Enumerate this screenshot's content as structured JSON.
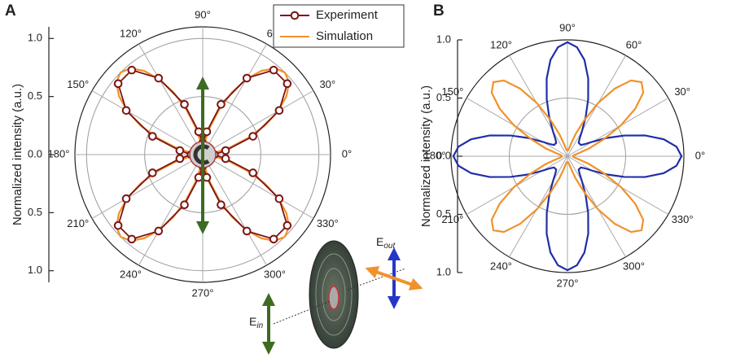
{
  "chart_data": [
    {
      "type": "polar",
      "panel": "A",
      "ylabel": "Normalized intensity (a.u.)",
      "rlim": [
        0,
        1.1
      ],
      "rticks": [
        {
          "value": 0,
          "label": "0.0"
        },
        {
          "value": 0.5,
          "label": "0.5"
        },
        {
          "value": 1,
          "label": "1.0"
        }
      ],
      "thetaticks": [
        {
          "value": 0,
          "label": "0°"
        },
        {
          "value": 30,
          "label": "30°"
        },
        {
          "value": 60,
          "label": "60°"
        },
        {
          "value": 90,
          "label": "90°"
        },
        {
          "value": 120,
          "label": "120°"
        },
        {
          "value": 150,
          "label": "150°"
        },
        {
          "value": 180,
          "label": "180°"
        },
        {
          "value": 210,
          "label": "210°"
        },
        {
          "value": 240,
          "label": "240°"
        },
        {
          "value": 270,
          "label": "270°"
        },
        {
          "value": 300,
          "label": "300°"
        },
        {
          "value": 330,
          "label": "330°"
        }
      ],
      "grid": true,
      "legend": "top-right",
      "series": [
        {
          "name": "Simulation",
          "color": "#f0922b",
          "marker": false,
          "theta": [
            0,
            5,
            10,
            15,
            20,
            25,
            30,
            35,
            40,
            45,
            50,
            55,
            60,
            65,
            70,
            75,
            80,
            85,
            90,
            95,
            100,
            105,
            110,
            115,
            120,
            125,
            130,
            135,
            140,
            145,
            150,
            155,
            160,
            165,
            170,
            175,
            180,
            185,
            190,
            195,
            200,
            205,
            210,
            215,
            220,
            225,
            230,
            235,
            240,
            245,
            250,
            255,
            260,
            265,
            270,
            275,
            280,
            285,
            290,
            295,
            300,
            305,
            310,
            315,
            320,
            325,
            330,
            335,
            340,
            345,
            350,
            355
          ],
          "values": [
            0,
            0.03,
            0.12,
            0.25,
            0.41,
            0.59,
            0.75,
            0.88,
            0.97,
            1.0,
            0.97,
            0.88,
            0.75,
            0.59,
            0.41,
            0.25,
            0.12,
            0.03,
            0,
            0.03,
            0.12,
            0.25,
            0.41,
            0.59,
            0.75,
            0.88,
            0.97,
            1.0,
            0.97,
            0.88,
            0.75,
            0.59,
            0.41,
            0.25,
            0.12,
            0.03,
            0,
            0.03,
            0.12,
            0.25,
            0.41,
            0.59,
            0.75,
            0.88,
            0.97,
            1.0,
            0.97,
            0.88,
            0.75,
            0.59,
            0.41,
            0.25,
            0.12,
            0.03,
            0,
            0.03,
            0.12,
            0.25,
            0.41,
            0.59,
            0.75,
            0.88,
            0.97,
            1.0,
            0.97,
            0.88,
            0.75,
            0.59,
            0.41,
            0.25,
            0.12,
            0.03
          ]
        },
        {
          "name": "Experiment",
          "color": "#7d1414",
          "marker": true,
          "theta": [
            0,
            10,
            20,
            30,
            40,
            50,
            60,
            70,
            80,
            90,
            100,
            110,
            120,
            130,
            140,
            150,
            160,
            170,
            180,
            190,
            200,
            210,
            220,
            230,
            240,
            250,
            260,
            270,
            280,
            290,
            300,
            310,
            320,
            330,
            340,
            350
          ],
          "values": [
            0.1,
            0.2,
            0.46,
            0.76,
            0.95,
            0.95,
            0.76,
            0.46,
            0.2,
            0.1,
            0.2,
            0.46,
            0.76,
            0.95,
            0.95,
            0.76,
            0.46,
            0.2,
            0.1,
            0.2,
            0.46,
            0.76,
            0.95,
            0.95,
            0.76,
            0.46,
            0.2,
            0.1,
            0.2,
            0.46,
            0.76,
            0.95,
            0.95,
            0.76,
            0.46,
            0.2
          ]
        }
      ]
    },
    {
      "type": "polar",
      "panel": "B",
      "ylabel": "Normalized intensity (a.u.)",
      "rlim": [
        0,
        1.0
      ],
      "rticks": [
        {
          "value": 0,
          "label": "0.0"
        },
        {
          "value": 0.5,
          "label": "0.5"
        },
        {
          "value": 1,
          "label": "1.0"
        }
      ],
      "thetaticks": [
        {
          "value": 0,
          "label": "0°"
        },
        {
          "value": 30,
          "label": "30°"
        },
        {
          "value": 60,
          "label": "60°"
        },
        {
          "value": 90,
          "label": "90°"
        },
        {
          "value": 120,
          "label": "120°"
        },
        {
          "value": 150,
          "label": "150°"
        },
        {
          "value": 180,
          "label": "180°"
        },
        {
          "value": 210,
          "label": "210°"
        },
        {
          "value": 240,
          "label": "240°"
        },
        {
          "value": 270,
          "label": "270°"
        },
        {
          "value": 300,
          "label": "300°"
        },
        {
          "value": 330,
          "label": "330°"
        }
      ],
      "grid": true,
      "series": [
        {
          "color": "#1f2ea6",
          "marker": false,
          "theta": [
            0,
            5,
            10,
            15,
            20,
            25,
            30,
            35,
            40,
            45,
            50,
            55,
            60,
            65,
            70,
            75,
            80,
            85,
            90,
            95,
            100,
            105,
            110,
            115,
            120,
            125,
            130,
            135,
            140,
            145,
            150,
            155,
            160,
            165,
            170,
            175,
            180,
            185,
            190,
            195,
            200,
            205,
            210,
            215,
            220,
            225,
            230,
            235,
            240,
            245,
            250,
            255,
            260,
            265,
            270,
            275,
            280,
            285,
            290,
            295,
            300,
            305,
            310,
            315,
            320,
            325,
            330,
            335,
            340,
            345,
            350,
            355
          ],
          "values": [
            0.98,
            0.94,
            0.84,
            0.69,
            0.52,
            0.37,
            0.25,
            0.18,
            0.15,
            0.15,
            0.15,
            0.18,
            0.25,
            0.37,
            0.52,
            0.69,
            0.84,
            0.94,
            0.98,
            0.94,
            0.84,
            0.69,
            0.52,
            0.37,
            0.25,
            0.18,
            0.15,
            0.15,
            0.15,
            0.18,
            0.25,
            0.37,
            0.52,
            0.69,
            0.84,
            0.94,
            0.98,
            0.94,
            0.84,
            0.69,
            0.52,
            0.37,
            0.25,
            0.18,
            0.15,
            0.15,
            0.15,
            0.18,
            0.25,
            0.37,
            0.52,
            0.69,
            0.84,
            0.94,
            0.98,
            0.94,
            0.84,
            0.69,
            0.52,
            0.37,
            0.25,
            0.18,
            0.15,
            0.15,
            0.15,
            0.18,
            0.25,
            0.37,
            0.52,
            0.69,
            0.84,
            0.94
          ]
        },
        {
          "color": "#f0922b",
          "marker": false,
          "theta": [
            0,
            5,
            10,
            15,
            20,
            25,
            30,
            35,
            40,
            45,
            50,
            55,
            60,
            65,
            70,
            75,
            80,
            85,
            90,
            95,
            100,
            105,
            110,
            115,
            120,
            125,
            130,
            135,
            140,
            145,
            150,
            155,
            160,
            165,
            170,
            175,
            180,
            185,
            190,
            195,
            200,
            205,
            210,
            215,
            220,
            225,
            230,
            235,
            240,
            245,
            250,
            255,
            260,
            265,
            270,
            275,
            280,
            285,
            290,
            295,
            300,
            305,
            310,
            315,
            320,
            325,
            330,
            335,
            340,
            345,
            350,
            355
          ],
          "values": [
            0.05,
            0.05,
            0.06,
            0.1,
            0.2,
            0.34,
            0.53,
            0.71,
            0.85,
            0.9,
            0.85,
            0.71,
            0.53,
            0.34,
            0.2,
            0.1,
            0.06,
            0.05,
            0.05,
            0.05,
            0.06,
            0.1,
            0.2,
            0.34,
            0.53,
            0.71,
            0.85,
            0.9,
            0.85,
            0.71,
            0.53,
            0.34,
            0.2,
            0.1,
            0.06,
            0.05,
            0.05,
            0.05,
            0.06,
            0.1,
            0.2,
            0.34,
            0.53,
            0.71,
            0.85,
            0.9,
            0.85,
            0.71,
            0.53,
            0.34,
            0.2,
            0.1,
            0.06,
            0.05,
            0.05,
            0.05,
            0.06,
            0.1,
            0.2,
            0.34,
            0.53,
            0.71,
            0.85,
            0.9,
            0.85,
            0.71,
            0.53,
            0.34,
            0.2,
            0.1,
            0.06,
            0.05
          ]
        }
      ]
    }
  ],
  "inset": {
    "labels": [
      {
        "text": "E",
        "sub": "in"
      },
      {
        "text": "E",
        "sub": "out"
      }
    ]
  }
}
